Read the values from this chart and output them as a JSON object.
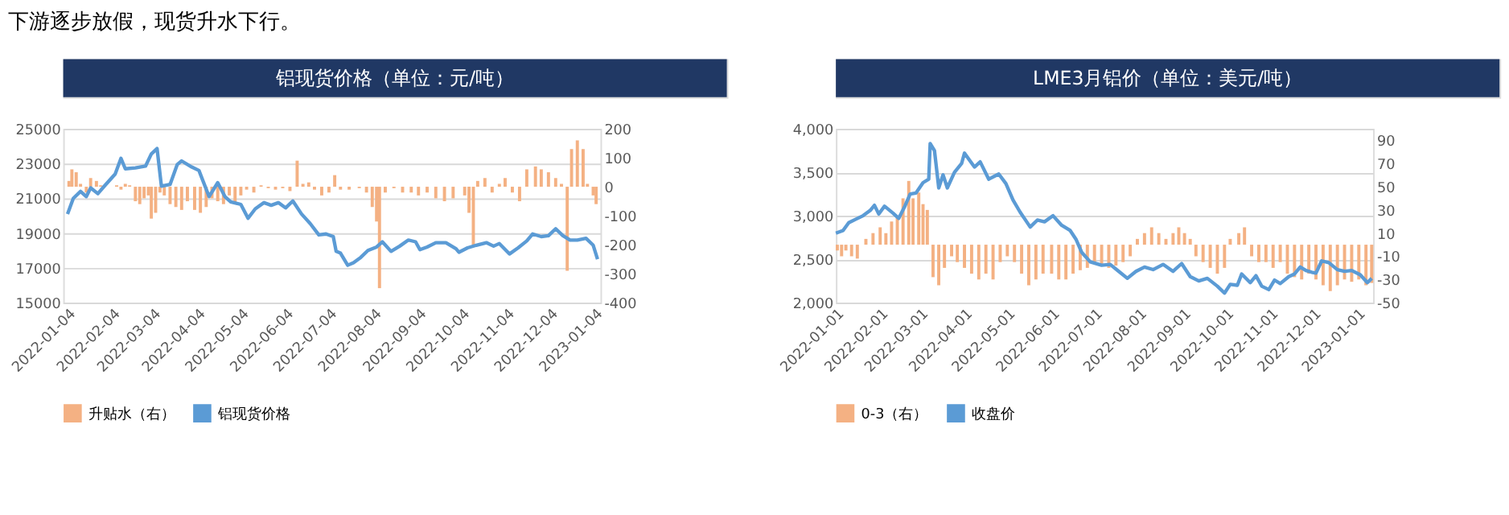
{
  "chart_data": [
    {
      "type": "bar",
      "title": "铝现货价格（单位：元/吨）",
      "annotations": [
        "下游逐步放假，现货升水下行。"
      ],
      "xlim": [
        "2022-01-01",
        "2023-01-08"
      ],
      "xticks": [
        "2022-01-04",
        "2022-02-04",
        "2022-03-04",
        "2022-04-04",
        "2022-05-04",
        "2022-06-04",
        "2022-07-04",
        "2022-08-04",
        "2022-09-04",
        "2022-10-04",
        "2022-11-04",
        "2022-12-04",
        "2023-01-04"
      ],
      "ylim": [
        15000,
        25000
      ],
      "yticks": [
        15000,
        17000,
        19000,
        21000,
        23000,
        25000
      ],
      "y2lim": [
        -400,
        200
      ],
      "y2ticks": [
        -400,
        -300,
        -200,
        -100,
        0,
        100,
        200
      ],
      "grid": "y",
      "legend": "bottom",
      "series": [
        {
          "name": "升贴水（右）",
          "axis": "y2",
          "color": "#f4b183",
          "x": [
            "2022-01-05",
            "2022-01-07",
            "2022-01-10",
            "2022-01-13",
            "2022-01-17",
            "2022-01-20",
            "2022-01-24",
            "2022-01-27",
            "2022-02-07",
            "2022-02-10",
            "2022-02-13",
            "2022-02-16",
            "2022-02-20",
            "2022-02-23",
            "2022-02-26",
            "2022-03-01",
            "2022-03-03",
            "2022-03-06",
            "2022-03-09",
            "2022-03-12",
            "2022-03-16",
            "2022-03-20",
            "2022-03-24",
            "2022-03-28",
            "2022-04-02",
            "2022-04-06",
            "2022-04-10",
            "2022-04-14",
            "2022-04-18",
            "2022-04-22",
            "2022-04-26",
            "2022-04-30",
            "2022-05-04",
            "2022-05-08",
            "2022-05-13",
            "2022-05-18",
            "2022-05-23",
            "2022-05-28",
            "2022-06-02",
            "2022-06-07",
            "2022-06-12",
            "2022-06-16",
            "2022-06-20",
            "2022-06-24",
            "2022-06-29",
            "2022-07-04",
            "2022-07-08",
            "2022-07-12",
            "2022-07-18",
            "2022-07-25",
            "2022-07-30",
            "2022-08-03",
            "2022-08-06",
            "2022-08-08",
            "2022-08-12",
            "2022-08-18",
            "2022-08-24",
            "2022-08-30",
            "2022-09-04",
            "2022-09-10",
            "2022-09-16",
            "2022-09-22",
            "2022-09-28",
            "2022-10-06",
            "2022-10-09",
            "2022-10-12",
            "2022-10-15",
            "2022-10-20",
            "2022-10-25",
            "2022-10-30",
            "2022-11-03",
            "2022-11-08",
            "2022-11-13",
            "2022-11-18",
            "2022-11-24",
            "2022-11-28",
            "2022-12-03",
            "2022-12-08",
            "2022-12-12",
            "2022-12-16",
            "2022-12-19",
            "2022-12-23",
            "2022-12-27",
            "2022-12-30",
            "2023-01-03",
            "2023-01-05"
          ],
          "values": [
            20,
            60,
            50,
            10,
            -20,
            30,
            20,
            5,
            5,
            -10,
            10,
            5,
            -50,
            -60,
            -40,
            -30,
            -110,
            -90,
            -20,
            -30,
            -60,
            -70,
            -80,
            -50,
            -80,
            -90,
            -70,
            -40,
            -50,
            -60,
            -30,
            -60,
            -30,
            -10,
            -20,
            5,
            -5,
            -10,
            -5,
            -15,
            90,
            10,
            15,
            -10,
            -30,
            -20,
            40,
            -10,
            -10,
            -5,
            -20,
            -70,
            -120,
            -350,
            -20,
            -5,
            -20,
            -20,
            -30,
            -20,
            -40,
            -50,
            -40,
            -30,
            -90,
            -200,
            20,
            30,
            -20,
            10,
            30,
            -20,
            -50,
            60,
            70,
            60,
            50,
            30,
            10,
            -290,
            130,
            160,
            130,
            10,
            -30,
            -60
          ]
        },
        {
          "name": "铝现货价格",
          "type": "line",
          "axis": "y",
          "color": "#5b9bd5",
          "x": [
            "2022-01-04",
            "2022-01-08",
            "2022-01-13",
            "2022-01-17",
            "2022-01-20",
            "2022-01-25",
            "2022-01-30",
            "2022-02-06",
            "2022-02-10",
            "2022-02-13",
            "2022-02-20",
            "2022-02-27",
            "2022-03-03",
            "2022-03-07",
            "2022-03-10",
            "2022-03-16",
            "2022-03-21",
            "2022-03-24",
            "2022-03-31",
            "2022-04-05",
            "2022-04-12",
            "2022-04-18",
            "2022-04-23",
            "2022-04-27",
            "2022-05-04",
            "2022-05-09",
            "2022-05-14",
            "2022-05-20",
            "2022-05-25",
            "2022-05-30",
            "2022-06-04",
            "2022-06-09",
            "2022-06-15",
            "2022-06-21",
            "2022-06-27",
            "2022-07-02",
            "2022-07-07",
            "2022-07-09",
            "2022-07-12",
            "2022-07-17",
            "2022-07-21",
            "2022-07-26",
            "2022-07-31",
            "2022-08-06",
            "2022-08-10",
            "2022-08-16",
            "2022-08-22",
            "2022-08-28",
            "2022-09-02",
            "2022-09-05",
            "2022-09-10",
            "2022-09-16",
            "2022-09-23",
            "2022-09-30",
            "2022-10-02",
            "2022-10-08",
            "2022-10-14",
            "2022-10-21",
            "2022-10-26",
            "2022-10-30",
            "2022-11-06",
            "2022-11-12",
            "2022-11-18",
            "2022-11-22",
            "2022-11-28",
            "2022-12-03",
            "2022-12-08",
            "2022-12-13",
            "2022-12-18",
            "2022-12-23",
            "2022-12-29",
            "2023-01-03",
            "2023-01-06"
          ],
          "values": [
            20100,
            21000,
            21400,
            21100,
            21600,
            21270,
            21750,
            22400,
            23300,
            22700,
            22750,
            22850,
            23550,
            23860,
            21700,
            21800,
            22950,
            23150,
            22800,
            22600,
            21100,
            21900,
            21100,
            20800,
            20650,
            19850,
            20400,
            20750,
            20600,
            20750,
            20450,
            20850,
            20100,
            19550,
            18900,
            18950,
            18800,
            17950,
            17850,
            17150,
            17300,
            17600,
            18000,
            18200,
            18500,
            17950,
            18250,
            18600,
            18500,
            18050,
            18200,
            18450,
            18450,
            18100,
            17900,
            18150,
            18300,
            18450,
            18250,
            18400,
            17800,
            18150,
            18550,
            18950,
            18800,
            18850,
            19250,
            18850,
            18600,
            18600,
            18700,
            18300,
            17500
          ]
        }
      ]
    },
    {
      "type": "bar",
      "title": "LME3月铝价（单位：美元/吨）",
      "xlim": [
        "2022-01-01",
        "2023-01-12"
      ],
      "xticks": [
        "2022-01-01",
        "2022-02-01",
        "2022-03-01",
        "2022-04-01",
        "2022-05-01",
        "2022-06-01",
        "2022-07-01",
        "2022-08-01",
        "2022-09-01",
        "2022-10-01",
        "2022-11-01",
        "2022-12-01",
        "2023-01-01"
      ],
      "ylim": [
        2000,
        4000
      ],
      "yticks": [
        {
          "value": 2000,
          "label": "2,000"
        },
        {
          "value": 2500,
          "label": "2,500"
        },
        {
          "value": 3000,
          "label": "3,000"
        },
        {
          "value": 3500,
          "label": "3,500"
        },
        {
          "value": 4000,
          "label": "4,000"
        }
      ],
      "y2lim": [
        -50,
        100
      ],
      "y2ticks": [
        -50,
        -30,
        -10,
        10,
        30,
        50,
        70,
        90
      ],
      "grid": "y",
      "legend": "bottom",
      "series": [
        {
          "name": "0-3（右）",
          "axis": "y2",
          "color": "#f4b183",
          "x": [
            "2022-01-02",
            "2022-01-05",
            "2022-01-08",
            "2022-01-12",
            "2022-01-16",
            "2022-01-22",
            "2022-01-27",
            "2022-02-01",
            "2022-02-05",
            "2022-02-09",
            "2022-02-13",
            "2022-02-17",
            "2022-02-21",
            "2022-02-24",
            "2022-02-28",
            "2022-03-03",
            "2022-03-06",
            "2022-03-10",
            "2022-03-14",
            "2022-03-18",
            "2022-03-23",
            "2022-03-27",
            "2022-04-01",
            "2022-04-06",
            "2022-04-11",
            "2022-04-16",
            "2022-04-21",
            "2022-04-26",
            "2022-05-01",
            "2022-05-06",
            "2022-05-11",
            "2022-05-16",
            "2022-05-21",
            "2022-05-26",
            "2022-06-01",
            "2022-06-06",
            "2022-06-11",
            "2022-06-16",
            "2022-06-21",
            "2022-06-26",
            "2022-07-01",
            "2022-07-06",
            "2022-07-11",
            "2022-07-16",
            "2022-07-21",
            "2022-07-26",
            "2022-07-31",
            "2022-08-05",
            "2022-08-10",
            "2022-08-15",
            "2022-08-20",
            "2022-08-25",
            "2022-08-29",
            "2022-09-02",
            "2022-09-06",
            "2022-09-10",
            "2022-09-15",
            "2022-09-20",
            "2022-09-25",
            "2022-09-30",
            "2022-10-04",
            "2022-10-10",
            "2022-10-14",
            "2022-10-19",
            "2022-10-24",
            "2022-10-29",
            "2022-11-03",
            "2022-11-08",
            "2022-11-13",
            "2022-11-18",
            "2022-11-23",
            "2022-11-28",
            "2022-12-03",
            "2022-12-08",
            "2022-12-13",
            "2022-12-18",
            "2022-12-23",
            "2022-12-28",
            "2023-01-02",
            "2023-01-07",
            "2023-01-11"
          ],
          "values": [
            -5,
            -10,
            -5,
            -10,
            -12,
            5,
            10,
            15,
            10,
            20,
            25,
            40,
            55,
            40,
            45,
            35,
            30,
            -28,
            -35,
            -20,
            -10,
            -15,
            -20,
            -25,
            -30,
            -25,
            -30,
            -15,
            -10,
            -15,
            -25,
            -35,
            -30,
            -25,
            -25,
            -30,
            -30,
            -25,
            -22,
            -20,
            -15,
            -18,
            -20,
            -18,
            -15,
            -10,
            5,
            10,
            15,
            10,
            5,
            10,
            15,
            10,
            5,
            -10,
            -15,
            -20,
            -25,
            -20,
            5,
            10,
            15,
            -10,
            -15,
            -15,
            -20,
            -15,
            -25,
            -28,
            -30,
            -25,
            -30,
            -35,
            -40,
            -35,
            -30,
            -32,
            -30,
            -35,
            -33
          ]
        },
        {
          "name": "收盘价",
          "type": "line",
          "axis": "y",
          "color": "#5b9bd5",
          "x": [
            "2022-01-01",
            "2022-01-06",
            "2022-01-10",
            "2022-01-15",
            "2022-01-20",
            "2022-01-25",
            "2022-01-28",
            "2022-01-31",
            "2022-02-04",
            "2022-02-10",
            "2022-02-14",
            "2022-02-18",
            "2022-02-22",
            "2022-02-26",
            "2022-03-03",
            "2022-03-07",
            "2022-03-08",
            "2022-03-11",
            "2022-03-14",
            "2022-03-17",
            "2022-03-20",
            "2022-03-25",
            "2022-03-30",
            "2022-04-01",
            "2022-04-04",
            "2022-04-08",
            "2022-04-12",
            "2022-04-18",
            "2022-04-25",
            "2022-04-30",
            "2022-05-05",
            "2022-05-10",
            "2022-05-17",
            "2022-05-22",
            "2022-05-27",
            "2022-06-02",
            "2022-06-08",
            "2022-06-14",
            "2022-06-18",
            "2022-06-22",
            "2022-06-28",
            "2022-07-06",
            "2022-07-12",
            "2022-07-18",
            "2022-07-24",
            "2022-07-30",
            "2022-08-05",
            "2022-08-11",
            "2022-08-18",
            "2022-08-25",
            "2022-08-31",
            "2022-09-06",
            "2022-09-12",
            "2022-09-18",
            "2022-09-25",
            "2022-09-30",
            "2022-10-04",
            "2022-10-09",
            "2022-10-12",
            "2022-10-18",
            "2022-10-22",
            "2022-10-26",
            "2022-10-31",
            "2022-11-04",
            "2022-11-08",
            "2022-11-14",
            "2022-11-18",
            "2022-11-22",
            "2022-11-26",
            "2022-11-30",
            "2022-12-03",
            "2022-12-07",
            "2022-12-12",
            "2022-12-18",
            "2022-12-23",
            "2022-12-28",
            "2023-01-03",
            "2023-01-08",
            "2023-01-11"
          ],
          "values": [
            2800,
            2830,
            2920,
            2960,
            3000,
            3060,
            3120,
            3020,
            3110,
            3030,
            2970,
            3100,
            3250,
            3260,
            3380,
            3420,
            3830,
            3750,
            3320,
            3470,
            3320,
            3500,
            3600,
            3720,
            3650,
            3560,
            3620,
            3420,
            3480,
            3370,
            3180,
            3040,
            2870,
            2950,
            2930,
            3000,
            2890,
            2830,
            2730,
            2580,
            2470,
            2430,
            2440,
            2360,
            2280,
            2360,
            2410,
            2380,
            2440,
            2360,
            2450,
            2300,
            2250,
            2280,
            2190,
            2110,
            2210,
            2200,
            2330,
            2230,
            2310,
            2190,
            2150,
            2260,
            2220,
            2300,
            2330,
            2410,
            2370,
            2350,
            2340,
            2480,
            2460,
            2380,
            2360,
            2370,
            2320,
            2230,
            2280
          ]
        }
      ]
    }
  ]
}
